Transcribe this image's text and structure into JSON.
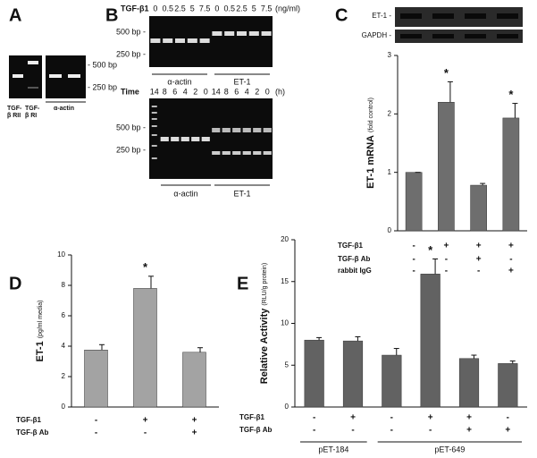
{
  "gels": {
    "A": {
      "label": "A",
      "lanes": [
        "TGF-β RII",
        "TGF-β RI",
        "α-actin"
      ],
      "markers": [
        "- 500 bp",
        "- 250 bp"
      ]
    },
    "B": {
      "label": "B",
      "top": {
        "header_label": "TGF-β1",
        "doses": [
          0,
          0.5,
          2.5,
          5,
          7.5,
          0,
          0.5,
          2.5,
          5,
          7.5
        ],
        "unit": "(ng/ml)",
        "markers": [
          "500 bp -",
          "250 bp -"
        ],
        "groups": [
          "α-actin",
          "ET-1"
        ]
      },
      "bottom": {
        "header_label": "Time",
        "times": [
          14,
          8,
          6,
          4,
          2,
          0,
          14,
          8,
          6,
          4,
          2,
          0
        ],
        "unit": "(h)",
        "markers": [
          "500 bp -",
          "250 bp -"
        ],
        "groups": [
          "α-actin",
          "ET-1"
        ]
      }
    }
  },
  "chart_data": [
    {
      "type": "bar",
      "panel": "C",
      "blot_labels": [
        "ET-1 -",
        "GAPDH -"
      ],
      "y_label": "ET-1 mRNA",
      "y_label_unit": "(fold control)",
      "values": [
        1,
        2.2,
        0.78,
        1.93
      ],
      "errors": [
        0,
        0.35,
        0.03,
        0.25
      ],
      "ylim": [
        0,
        3
      ],
      "yticks": [
        0,
        1,
        2,
        3
      ],
      "color": "#6e6e6e",
      "annotations": [
        {
          "index": 1,
          "text": "*"
        },
        {
          "index": 3,
          "text": "*"
        }
      ],
      "conditions": [
        {
          "name": "TGF-β1",
          "marks": [
            "-",
            "+",
            "+",
            "+"
          ]
        },
        {
          "name": "TGF-β Ab",
          "marks": [
            "-",
            "-",
            "+",
            "-"
          ]
        },
        {
          "name": "rabbit IgG",
          "marks": [
            "-",
            "-",
            "-",
            "+"
          ]
        }
      ]
    },
    {
      "type": "bar",
      "panel": "D",
      "y_label": "ET-1",
      "y_label_unit": "(pg/ml media)",
      "values": [
        3.75,
        7.8,
        3.6
      ],
      "errors": [
        0.35,
        0.8,
        0.3
      ],
      "ylim": [
        0,
        10
      ],
      "yticks": [
        0,
        2,
        4,
        6,
        8,
        10
      ],
      "color": "#a3a3a3",
      "annotations": [
        {
          "index": 1,
          "text": "*"
        }
      ],
      "conditions": [
        {
          "name": "TGF-β1",
          "marks": [
            "-",
            "+",
            "+"
          ]
        },
        {
          "name": "TGF-β Ab",
          "marks": [
            "-",
            "-",
            "+"
          ]
        }
      ]
    },
    {
      "type": "bar",
      "panel": "E",
      "y_label": "Relative Activity",
      "y_label_unit": "(RLU/g protein)",
      "values": [
        8.0,
        7.9,
        6.2,
        15.9,
        5.8,
        5.2
      ],
      "errors": [
        0.3,
        0.5,
        0.8,
        1.8,
        0.4,
        0.3
      ],
      "ylim": [
        0,
        20
      ],
      "yticks": [
        0,
        5,
        10,
        15,
        20
      ],
      "color": "#626262",
      "annotations": [
        {
          "index": 3,
          "text": "*"
        }
      ],
      "conditions": [
        {
          "name": "TGF-β1",
          "marks": [
            "-",
            "+",
            "-",
            "+",
            "+",
            "-"
          ]
        },
        {
          "name": "TGF-β Ab",
          "marks": [
            "-",
            "-",
            "-",
            "-",
            "+",
            "+"
          ]
        }
      ],
      "groups": [
        {
          "label": "pET-184",
          "count": 2
        },
        {
          "label": "pET-649",
          "count": 4
        }
      ]
    }
  ]
}
